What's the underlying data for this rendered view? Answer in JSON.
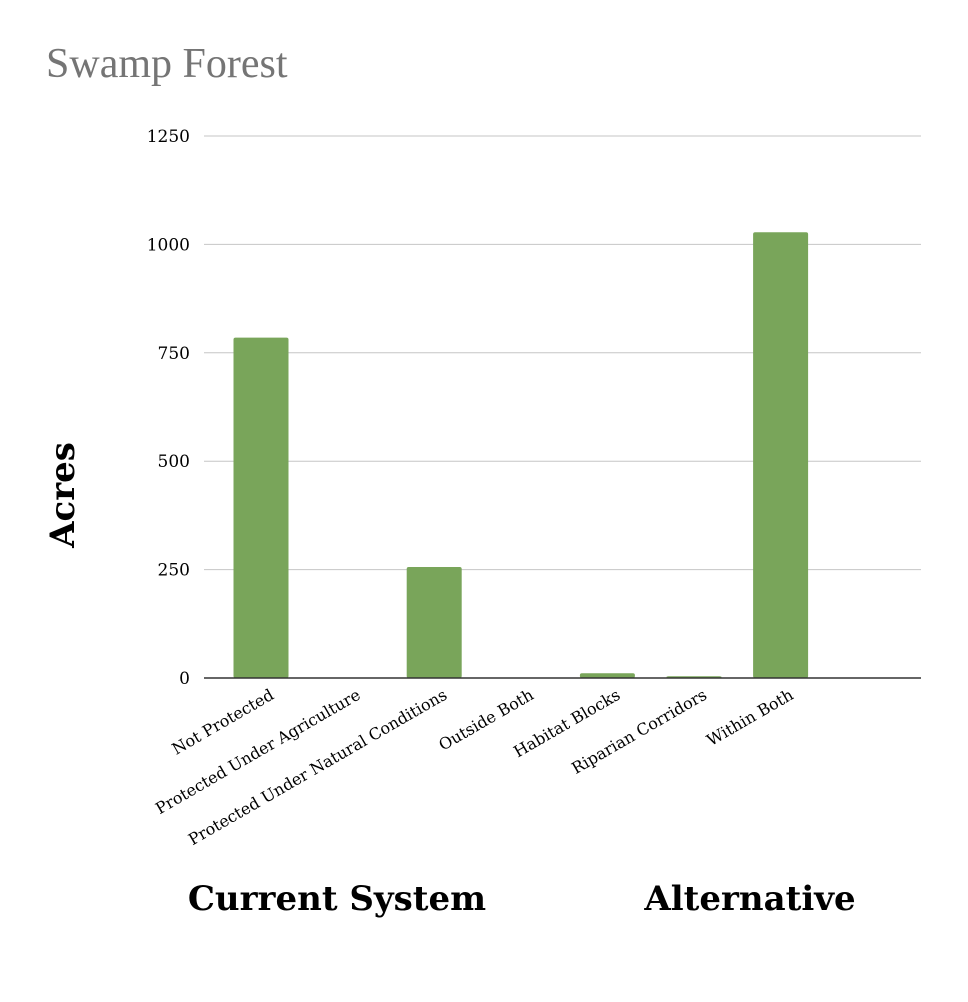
{
  "chart_data": {
    "type": "bar",
    "title": "Swamp Forest",
    "xlabel": "",
    "ylabel": "Acres",
    "ylim": [
      0,
      1250
    ],
    "yticks": [
      0,
      250,
      500,
      750,
      1000,
      1250
    ],
    "grid": true,
    "categories": [
      "Not Protected",
      "Protected Under Agriculture",
      "Protected Under Natural Conditions",
      "Outside Both",
      "Habitat Blocks",
      "Riparian Corridors",
      "Within Both"
    ],
    "values": [
      785,
      0,
      256,
      0,
      11,
      4,
      1028
    ],
    "groups": [
      {
        "label": "Current System"
      },
      {
        "label": "Alternative"
      }
    ],
    "bar_color": "#79a55a",
    "grid_color": "#c6c6c6",
    "axis_color": "#333333"
  }
}
